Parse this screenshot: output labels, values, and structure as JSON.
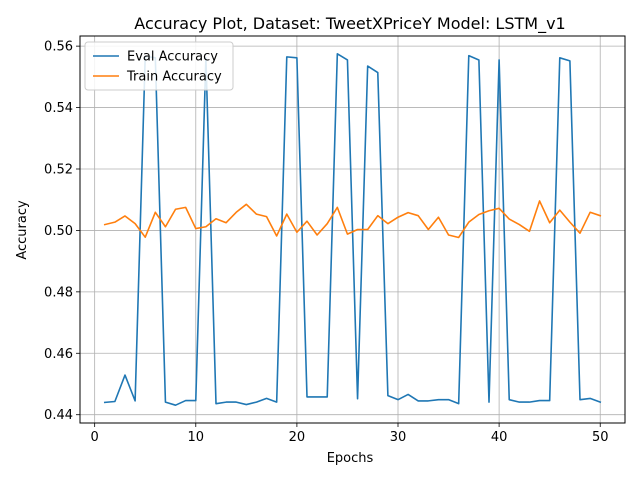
{
  "chart_data": {
    "type": "line",
    "title": "Accuracy Plot, Dataset: TweetXPriceY Model: LSTM_v1",
    "xlabel": "Epochs",
    "ylabel": "Accuracy",
    "xlim": [
      -1.45,
      52.45
    ],
    "ylim": [
      0.4373,
      0.5633
    ],
    "xticks": [
      0,
      10,
      20,
      30,
      40,
      50
    ],
    "yticks": [
      0.44,
      0.46,
      0.48,
      0.5,
      0.52,
      0.54,
      0.56
    ],
    "grid": true,
    "legend_position": "upper-left",
    "x": [
      1,
      2,
      3,
      4,
      5,
      6,
      7,
      8,
      9,
      10,
      11,
      12,
      13,
      14,
      15,
      16,
      17,
      18,
      19,
      20,
      21,
      22,
      23,
      24,
      25,
      26,
      27,
      28,
      29,
      30,
      31,
      32,
      33,
      34,
      35,
      36,
      37,
      38,
      39,
      40,
      41,
      42,
      43,
      44,
      45,
      46,
      47,
      48,
      49,
      50
    ],
    "series": [
      {
        "name": "Eval Accuracy",
        "color": "#1f77b4",
        "values": [
          0.444,
          0.4443,
          0.4529,
          0.4445,
          0.5567,
          0.5562,
          0.4441,
          0.4431,
          0.4446,
          0.4446,
          0.5562,
          0.4436,
          0.4441,
          0.4441,
          0.4433,
          0.4441,
          0.4453,
          0.4441,
          0.5565,
          0.5562,
          0.4458,
          0.4458,
          0.4458,
          0.5575,
          0.5555,
          0.4452,
          0.5535,
          0.5514,
          0.4462,
          0.4449,
          0.4466,
          0.4445,
          0.4445,
          0.4449,
          0.4449,
          0.4436,
          0.5569,
          0.5555,
          0.4441,
          0.5555,
          0.4449,
          0.4441,
          0.4441,
          0.4446,
          0.4446,
          0.5562,
          0.5552,
          0.4449,
          0.4453,
          0.4441
        ]
      },
      {
        "name": "Train Accuracy",
        "color": "#ff7f0e",
        "values": [
          0.5019,
          0.5027,
          0.5047,
          0.5022,
          0.4978,
          0.5059,
          0.5012,
          0.5069,
          0.5075,
          0.5006,
          0.5012,
          0.5038,
          0.5025,
          0.5059,
          0.5085,
          0.5053,
          0.5045,
          0.4982,
          0.5053,
          0.4994,
          0.503,
          0.4985,
          0.5022,
          0.5075,
          0.4988,
          0.5003,
          0.5003,
          0.5048,
          0.5022,
          0.5043,
          0.5058,
          0.5048,
          0.5003,
          0.5043,
          0.4985,
          0.4977,
          0.5027,
          0.5052,
          0.5064,
          0.5072,
          0.5037,
          0.5019,
          0.4997,
          0.5096,
          0.5025,
          0.5066,
          0.5027,
          0.4991,
          0.5059,
          0.5048
        ]
      }
    ]
  }
}
